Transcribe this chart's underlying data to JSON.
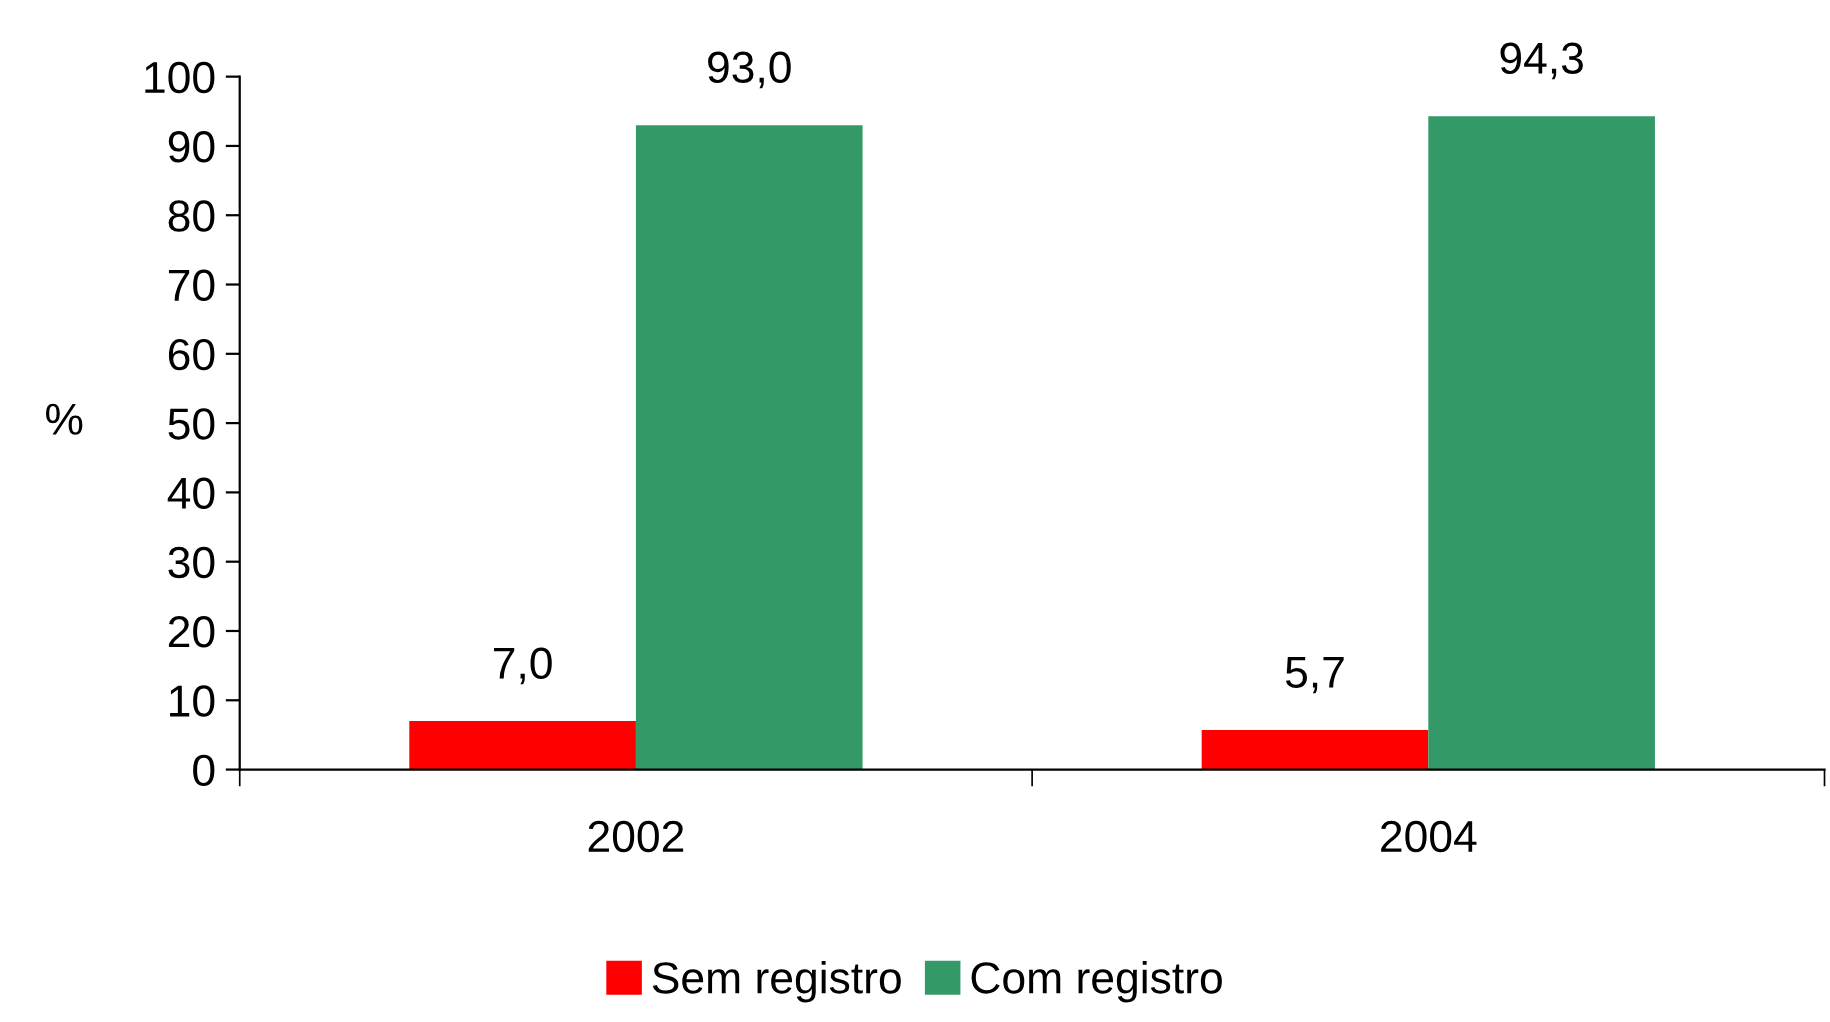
{
  "chart_data": {
    "type": "bar",
    "categories": [
      "2002",
      "2004"
    ],
    "ylabel": "%",
    "series": [
      {
        "name": "Sem registro",
        "color": "#ff0000",
        "values": [
          7.0,
          5.7
        ],
        "value_labels": [
          "7,0",
          "5,7"
        ]
      },
      {
        "name": "Com registro",
        "color": "#339966",
        "values": [
          93.0,
          94.3
        ],
        "value_labels": [
          "93,0",
          "94,3"
        ]
      }
    ],
    "ylim": [
      0,
      100
    ],
    "yticks": [
      0,
      10,
      20,
      30,
      40,
      50,
      60,
      70,
      80,
      90,
      100
    ],
    "grid": false,
    "legend": "bottom"
  }
}
